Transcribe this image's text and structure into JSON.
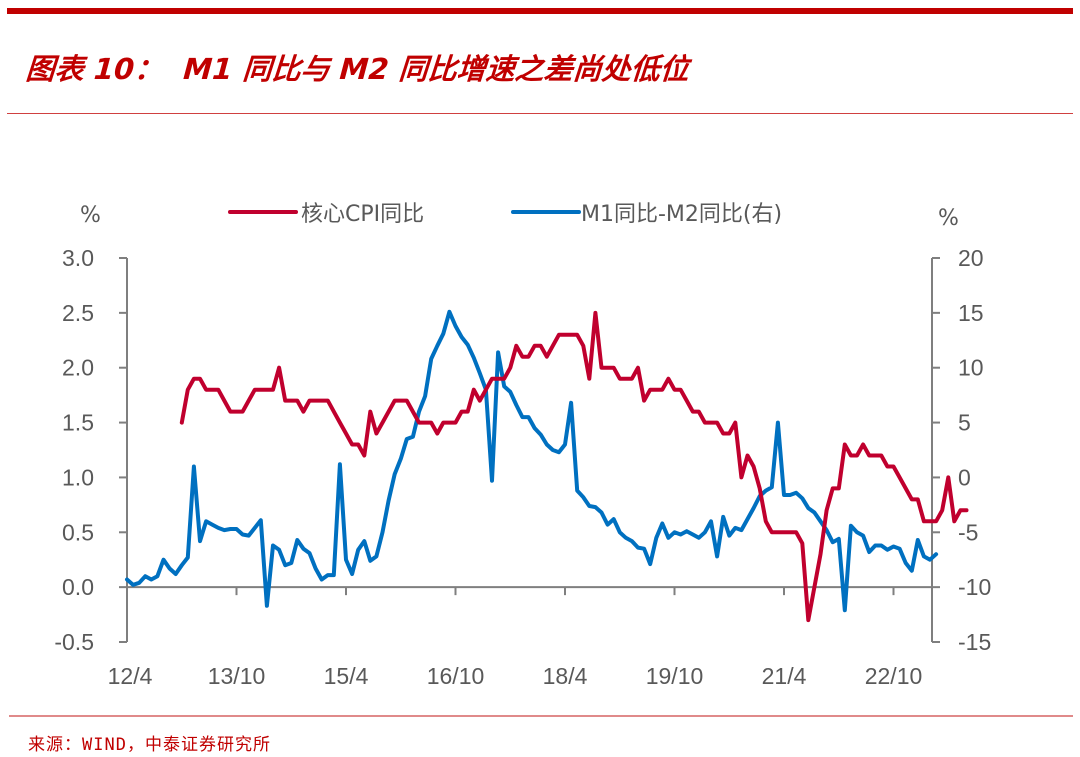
{
  "header": {
    "title": "图表 10：  M1 同比与 M2 同比增速之差尚处低位"
  },
  "footer": {
    "source": "来源：WIND，中泰证券研究所"
  },
  "colors": {
    "accent": "#c00000",
    "series_cpi": "#c0002e",
    "series_m1m2": "#0070c0",
    "axis": "#7f7f7f",
    "text": "#595959"
  },
  "chart_data": {
    "type": "line",
    "title": "M1 同比与 M2 同比增速之差尚处低位",
    "xlabel": "",
    "ylabel": "%",
    "y2label": "%",
    "ylim": [
      -0.5,
      3.0
    ],
    "y2lim": [
      -15,
      20
    ],
    "yticks": [
      "3.0",
      "2.5",
      "2.0",
      "1.5",
      "1.0",
      "0.5",
      "0.0",
      "-0.5"
    ],
    "y2ticks": [
      "20",
      "15",
      "10",
      "5",
      "0",
      "-5",
      "-10",
      "-15"
    ],
    "xticks": [
      "12/4",
      "13/10",
      "15/4",
      "16/10",
      "18/4",
      "19/10",
      "21/4",
      "22/10"
    ],
    "grid": false,
    "legend_position": "top",
    "x_start": "2012-04",
    "x_frequency": "monthly",
    "series": [
      {
        "name": "核心CPI同比",
        "axis": "left",
        "start_index": 9,
        "values": [
          1.5,
          1.8,
          1.9,
          1.9,
          1.8,
          1.8,
          1.8,
          1.7,
          1.6,
          1.6,
          1.6,
          1.7,
          1.8,
          1.8,
          1.8,
          1.8,
          2.0,
          1.7,
          1.7,
          1.7,
          1.6,
          1.7,
          1.7,
          1.7,
          1.7,
          1.6,
          1.5,
          1.4,
          1.3,
          1.3,
          1.2,
          1.6,
          1.4,
          1.5,
          1.6,
          1.7,
          1.7,
          1.7,
          1.6,
          1.5,
          1.5,
          1.5,
          1.4,
          1.5,
          1.5,
          1.5,
          1.6,
          1.6,
          1.8,
          1.7,
          1.8,
          1.9,
          1.9,
          1.9,
          2.0,
          2.2,
          2.1,
          2.1,
          2.2,
          2.2,
          2.1,
          2.2,
          2.3,
          2.3,
          2.3,
          2.3,
          2.2,
          1.9,
          2.5,
          2.0,
          2.0,
          2.0,
          1.9,
          1.9,
          1.9,
          2.0,
          1.7,
          1.8,
          1.8,
          1.8,
          1.9,
          1.8,
          1.8,
          1.7,
          1.6,
          1.6,
          1.5,
          1.5,
          1.5,
          1.4,
          1.4,
          1.5,
          1.0,
          1.2,
          1.1,
          0.9,
          0.6,
          0.5,
          0.5,
          0.5,
          0.5,
          0.5,
          0.4,
          -0.3,
          0.0,
          0.3,
          0.7,
          0.9,
          0.9,
          1.3,
          1.2,
          1.2,
          1.3,
          1.2,
          1.2,
          1.2,
          1.1,
          1.1,
          1.0,
          0.9,
          0.8,
          0.8,
          0.6,
          0.6,
          0.6,
          0.7,
          1.0,
          0.6,
          0.7,
          0.7
        ]
      },
      {
        "name": "M1同比-M2同比(右)",
        "axis": "right",
        "start_index": 0,
        "values": [
          -9.3,
          -9.8,
          -9.6,
          -9.0,
          -9.3,
          -9.0,
          -7.5,
          -8.3,
          -8.8,
          -8.0,
          -7.3,
          1.0,
          -5.8,
          -4.0,
          -4.3,
          -4.6,
          -4.8,
          -4.7,
          -4.7,
          -5.2,
          -5.3,
          -4.6,
          -3.9,
          -11.7,
          -6.2,
          -6.6,
          -8.0,
          -7.8,
          -5.7,
          -6.5,
          -6.9,
          -8.3,
          -9.3,
          -8.9,
          -8.9,
          1.2,
          -7.5,
          -8.8,
          -6.6,
          -5.8,
          -7.6,
          -7.2,
          -5.0,
          -2.1,
          0.3,
          1.7,
          3.5,
          3.7,
          6.0,
          7.4,
          10.8,
          12.0,
          13.1,
          15.1,
          13.8,
          12.8,
          12.1,
          10.9,
          9.5,
          8.0,
          -0.3,
          11.4,
          8.3,
          7.8,
          6.6,
          5.5,
          5.5,
          4.5,
          3.9,
          3.0,
          2.5,
          2.3,
          3.0,
          6.8,
          -1.2,
          -1.8,
          -2.6,
          -2.7,
          -3.2,
          -4.3,
          -3.8,
          -5.0,
          -5.5,
          -5.8,
          -6.4,
          -6.5,
          -7.9,
          -5.5,
          -4.2,
          -5.5,
          -5.0,
          -5.2,
          -4.9,
          -5.2,
          -5.5,
          -5.0,
          -4.0,
          -7.2,
          -3.6,
          -5.3,
          -4.6,
          -4.8,
          -3.8,
          -2.8,
          -1.7,
          -1.2,
          -0.9,
          5.0,
          -1.6,
          -1.6,
          -1.4,
          -1.9,
          -2.8,
          -3.2,
          -4.0,
          -4.8,
          -5.9,
          -5.6,
          -12.1,
          -4.4,
          -5.0,
          -5.3,
          -6.8,
          -6.2,
          -6.2,
          -6.6,
          -6.3,
          -6.5,
          -7.8,
          -8.5,
          -5.7,
          -7.2,
          -7.5,
          -7.0
        ]
      }
    ]
  },
  "legend": {
    "left_unit": "%",
    "right_unit": "%",
    "items": [
      {
        "label": "核心CPI同比",
        "color": "#c0002e"
      },
      {
        "label": "M1同比-M2同比(右)",
        "color": "#0070c0"
      }
    ]
  }
}
